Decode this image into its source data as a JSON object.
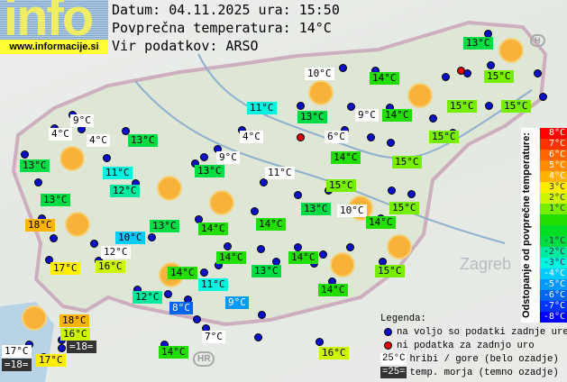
{
  "header": {
    "logo": "info",
    "url": "www.informacije.si",
    "date_line": "Datum: 04.11.2025 ura: 15:50",
    "avg_line": "Povprečna temperatura: 14°C",
    "source_line": "Vir podatkov: ARSO"
  },
  "average_temp": 14,
  "map": {
    "place_labels": [
      "Zagreb",
      "HR",
      "H"
    ],
    "labels": [
      {
        "text": "13°C",
        "kind": "normal"
      },
      {
        "text": "10°C",
        "kind": "hill"
      },
      {
        "text": "14°C",
        "kind": "normal"
      },
      {
        "text": "15°C",
        "kind": "normal"
      },
      {
        "text": "11°C",
        "kind": "normal"
      },
      {
        "text": "13°C",
        "kind": "normal"
      },
      {
        "text": "9°C",
        "kind": "hill"
      },
      {
        "text": "14°C",
        "kind": "normal"
      },
      {
        "text": "15°C",
        "kind": "normal"
      },
      {
        "text": "15°C",
        "kind": "normal"
      },
      {
        "text": "9°C",
        "kind": "hill"
      },
      {
        "text": "4°C",
        "kind": "hill"
      },
      {
        "text": "4°C",
        "kind": "hill"
      },
      {
        "text": "13°C",
        "kind": "normal"
      },
      {
        "text": "4°C",
        "kind": "hill"
      },
      {
        "text": "6°C",
        "kind": "hill"
      },
      {
        "text": "15°C",
        "kind": "normal"
      },
      {
        "text": "13°C",
        "kind": "normal"
      },
      {
        "text": "11°C",
        "kind": "normal"
      },
      {
        "text": "9°C",
        "kind": "hill"
      },
      {
        "text": "14°C",
        "kind": "normal"
      },
      {
        "text": "15°C",
        "kind": "normal"
      },
      {
        "text": "13°C",
        "kind": "normal"
      },
      {
        "text": "11°C",
        "kind": "hill"
      },
      {
        "text": "12°C",
        "kind": "normal"
      },
      {
        "text": "13°C",
        "kind": "normal"
      },
      {
        "text": "15°C",
        "kind": "normal"
      },
      {
        "text": "13°C",
        "kind": "normal"
      },
      {
        "text": "10°C",
        "kind": "hill"
      },
      {
        "text": "15°C",
        "kind": "normal"
      },
      {
        "text": "18°C",
        "kind": "normal"
      },
      {
        "text": "13°C",
        "kind": "normal"
      },
      {
        "text": "14°C",
        "kind": "normal"
      },
      {
        "text": "14°C",
        "kind": "normal"
      },
      {
        "text": "14°C",
        "kind": "normal"
      },
      {
        "text": "10°C",
        "kind": "normal"
      },
      {
        "text": "12°C",
        "kind": "hill"
      },
      {
        "text": "14°C",
        "kind": "normal"
      },
      {
        "text": "14°C",
        "kind": "normal"
      },
      {
        "text": "13°C",
        "kind": "normal"
      },
      {
        "text": "17°C",
        "kind": "normal"
      },
      {
        "text": "16°C",
        "kind": "normal"
      },
      {
        "text": "15°C",
        "kind": "normal"
      },
      {
        "text": "14°C",
        "kind": "normal"
      },
      {
        "text": "11°C",
        "kind": "normal"
      },
      {
        "text": "14°C",
        "kind": "normal"
      },
      {
        "text": "12°C",
        "kind": "normal"
      },
      {
        "text": "8°C",
        "kind": "normal"
      },
      {
        "text": "9°C",
        "kind": "normal"
      },
      {
        "text": "18°C",
        "kind": "normal"
      },
      {
        "text": "16°C",
        "kind": "normal"
      },
      {
        "text": "=18=",
        "kind": "sea"
      },
      {
        "text": "17°C",
        "kind": "hill"
      },
      {
        "text": "=18=",
        "kind": "sea"
      },
      {
        "text": "17°C",
        "kind": "normal"
      },
      {
        "text": "7°C",
        "kind": "hill"
      },
      {
        "text": "14°C",
        "kind": "normal"
      },
      {
        "text": "16°C",
        "kind": "normal"
      }
    ]
  },
  "scale": {
    "title": "Odstopanje od povprečne temperature:",
    "steps": [
      {
        "label": "8°C",
        "color": "#ff0000"
      },
      {
        "label": "7°C",
        "color": "#ff3300"
      },
      {
        "label": "6°C",
        "color": "#ff6600"
      },
      {
        "label": "5°C",
        "color": "#ff8c00"
      },
      {
        "label": "4°C",
        "color": "#ffb400"
      },
      {
        "label": "3°C",
        "color": "#ffee00"
      },
      {
        "label": "2°C",
        "color": "#ccf500"
      },
      {
        "label": "1°C",
        "color": "#77ee00"
      },
      {
        "label": "",
        "color": "#22dd00"
      },
      {
        "label": "",
        "color": "#00dd22"
      },
      {
        "label": "-1°C",
        "color": "#00dd44"
      },
      {
        "label": "-2°C",
        "color": "#00eaa0"
      },
      {
        "label": "-3°C",
        "color": "#00f5e0"
      },
      {
        "label": "-4°C",
        "color": "#00ccff"
      },
      {
        "label": "-5°C",
        "color": "#0099ff"
      },
      {
        "label": "-6°C",
        "color": "#0066f0"
      },
      {
        "label": "-7°C",
        "color": "#0033ff"
      },
      {
        "label": "-8°C",
        "color": "#0000ff"
      }
    ]
  },
  "legend": {
    "title": "Legenda:",
    "available": "na voljo so podatki zadnje ure",
    "missing": "ni podatka za zadnjo uro",
    "hill_sample": "25°C",
    "hill_text": "hribi / gore (belo ozadje)",
    "sea_sample": "=25=",
    "sea_text": "temp. morja (temno ozadje)",
    "available_color": "#0a10c8",
    "missing_color": "#dd0000"
  }
}
